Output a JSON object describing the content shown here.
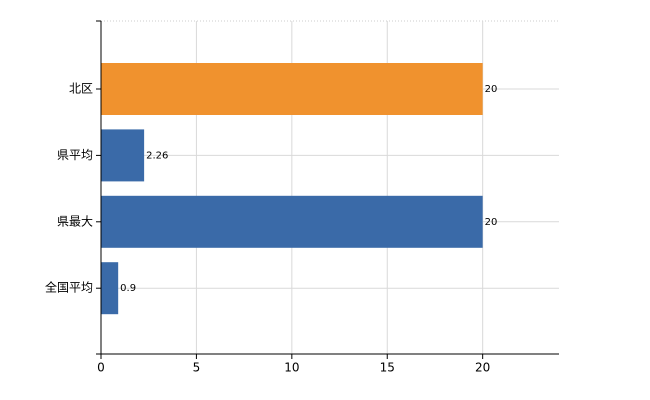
{
  "chart_data": {
    "type": "barh",
    "categories": [
      "北区",
      "県平均",
      "県最大",
      "全国平均"
    ],
    "values": [
      20,
      2.26,
      20,
      0.9
    ],
    "colors": [
      "#f0922e",
      "#3a6aa8",
      "#3a6aa8",
      "#3a6aa8"
    ],
    "xlim": [
      0,
      24
    ],
    "xticks": [
      0,
      5,
      10,
      15,
      20
    ],
    "grid": true
  }
}
